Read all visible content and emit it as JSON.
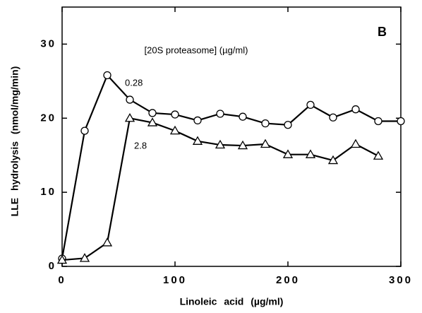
{
  "chart_data": {
    "type": "line",
    "panel_label": "B",
    "annotation": "[20S proteasome] (µg/ml)",
    "x_label": "Linoleic acid (µg/ml)",
    "y_label": "LLE hydrolysis (nmol/mg/min)",
    "xlim": [
      0,
      300
    ],
    "ylim": [
      0,
      35
    ],
    "xticks": [
      0,
      100,
      200,
      300
    ],
    "yticks": [
      0,
      10,
      20,
      30
    ],
    "series": [
      {
        "name": "0.28",
        "color": "#000",
        "marker": "circle",
        "x": [
          0,
          20,
          40,
          60,
          80,
          100,
          120,
          140,
          160,
          180,
          200,
          220,
          240,
          260,
          280,
          300
        ],
        "values": [
          1.05,
          18.3,
          25.8,
          22.5,
          20.7,
          20.5,
          19.7,
          20.6,
          20.2,
          19.3,
          19.1,
          21.8,
          20.1,
          21.2,
          19.6,
          19.6
        ]
      },
      {
        "name": "2.8",
        "color": "#000",
        "marker": "triangle",
        "x": [
          0,
          20,
          40,
          60,
          80,
          100,
          120,
          140,
          160,
          180,
          200,
          220,
          240,
          260,
          280
        ],
        "values": [
          0.85,
          1.1,
          3.2,
          20,
          19.4,
          18.3,
          16.9,
          16.4,
          16.3,
          16.5,
          15.1,
          15.1,
          14.3,
          16.5,
          14.9
        ]
      }
    ]
  }
}
